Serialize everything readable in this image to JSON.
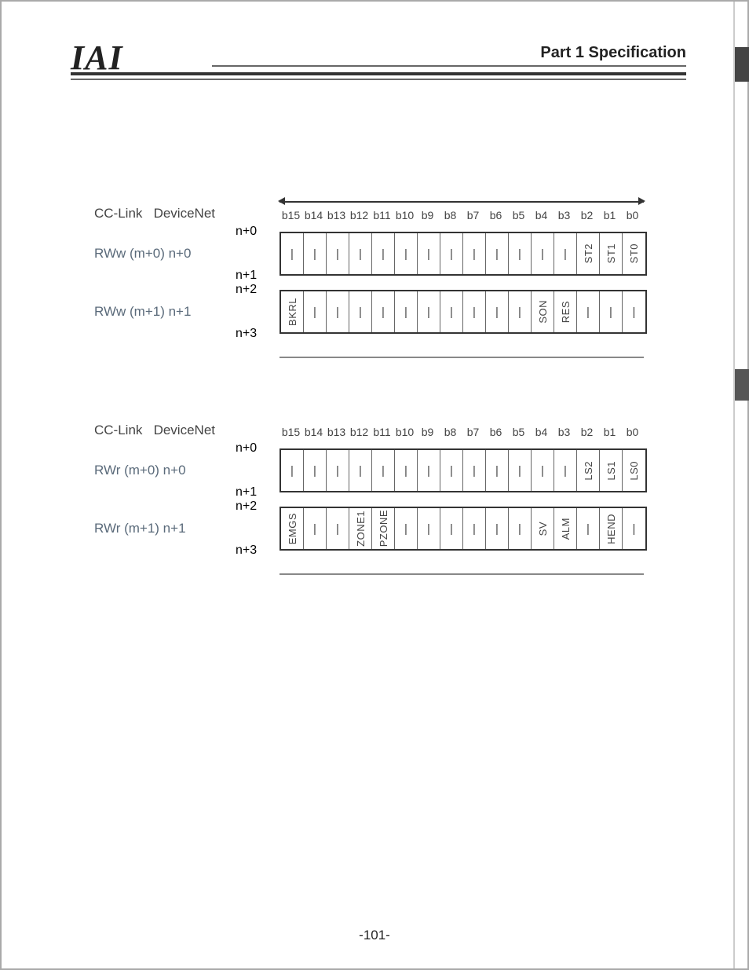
{
  "header": {
    "logo": "IAI",
    "title": "Part 1  Specification"
  },
  "page_number": "-101-",
  "bit_headers": [
    "b15",
    "b14",
    "b13",
    "b12",
    "b11",
    "b10",
    "b9",
    "b8",
    "b7",
    "b6",
    "b5",
    "b4",
    "b3",
    "b2",
    "b1",
    "b0"
  ],
  "sections": [
    {
      "label_line": {
        "a": "CC-Link",
        "b": "DeviceNet"
      },
      "rows": [
        {
          "left": "RWw (m+0)  n+0",
          "addr_top": "n+0",
          "addr_bottom": "n+1",
          "cells": [
            "|",
            "|",
            "|",
            "|",
            "|",
            "|",
            "|",
            "|",
            "|",
            "|",
            "|",
            "|",
            "|",
            "ST2",
            "ST1",
            "ST0"
          ],
          "vertical_idx": [
            13,
            14,
            15
          ]
        },
        {
          "left": "RWw (m+1)  n+1",
          "addr_top": "n+2",
          "addr_bottom": "n+3",
          "cells": [
            "BKRL",
            "|",
            "|",
            "|",
            "|",
            "|",
            "|",
            "|",
            "|",
            "|",
            "|",
            "SON",
            "RES",
            "|",
            "|",
            "|"
          ],
          "vertical_idx": [
            0,
            11,
            12
          ]
        }
      ]
    },
    {
      "label_line": {
        "a": "CC-Link",
        "b": "DeviceNet"
      },
      "rows": [
        {
          "left": "RWr  (m+0)  n+0",
          "addr_top": "n+0",
          "addr_bottom": "n+1",
          "cells": [
            "|",
            "|",
            "|",
            "|",
            "|",
            "|",
            "|",
            "|",
            "|",
            "|",
            "|",
            "|",
            "|",
            "LS2",
            "LS1",
            "LS0"
          ],
          "vertical_idx": [
            13,
            14,
            15
          ]
        },
        {
          "left": "RWr  (m+1)  n+1",
          "addr_top": "n+2",
          "addr_bottom": "n+3",
          "cells": [
            "EMGS",
            "|",
            "|",
            "ZONE1",
            "PZONE",
            "|",
            "|",
            "|",
            "|",
            "|",
            "|",
            "SV",
            "ALM",
            "|",
            "HEND",
            "|"
          ],
          "vertical_idx": [
            0,
            3,
            4,
            11,
            12,
            14
          ]
        }
      ]
    }
  ]
}
